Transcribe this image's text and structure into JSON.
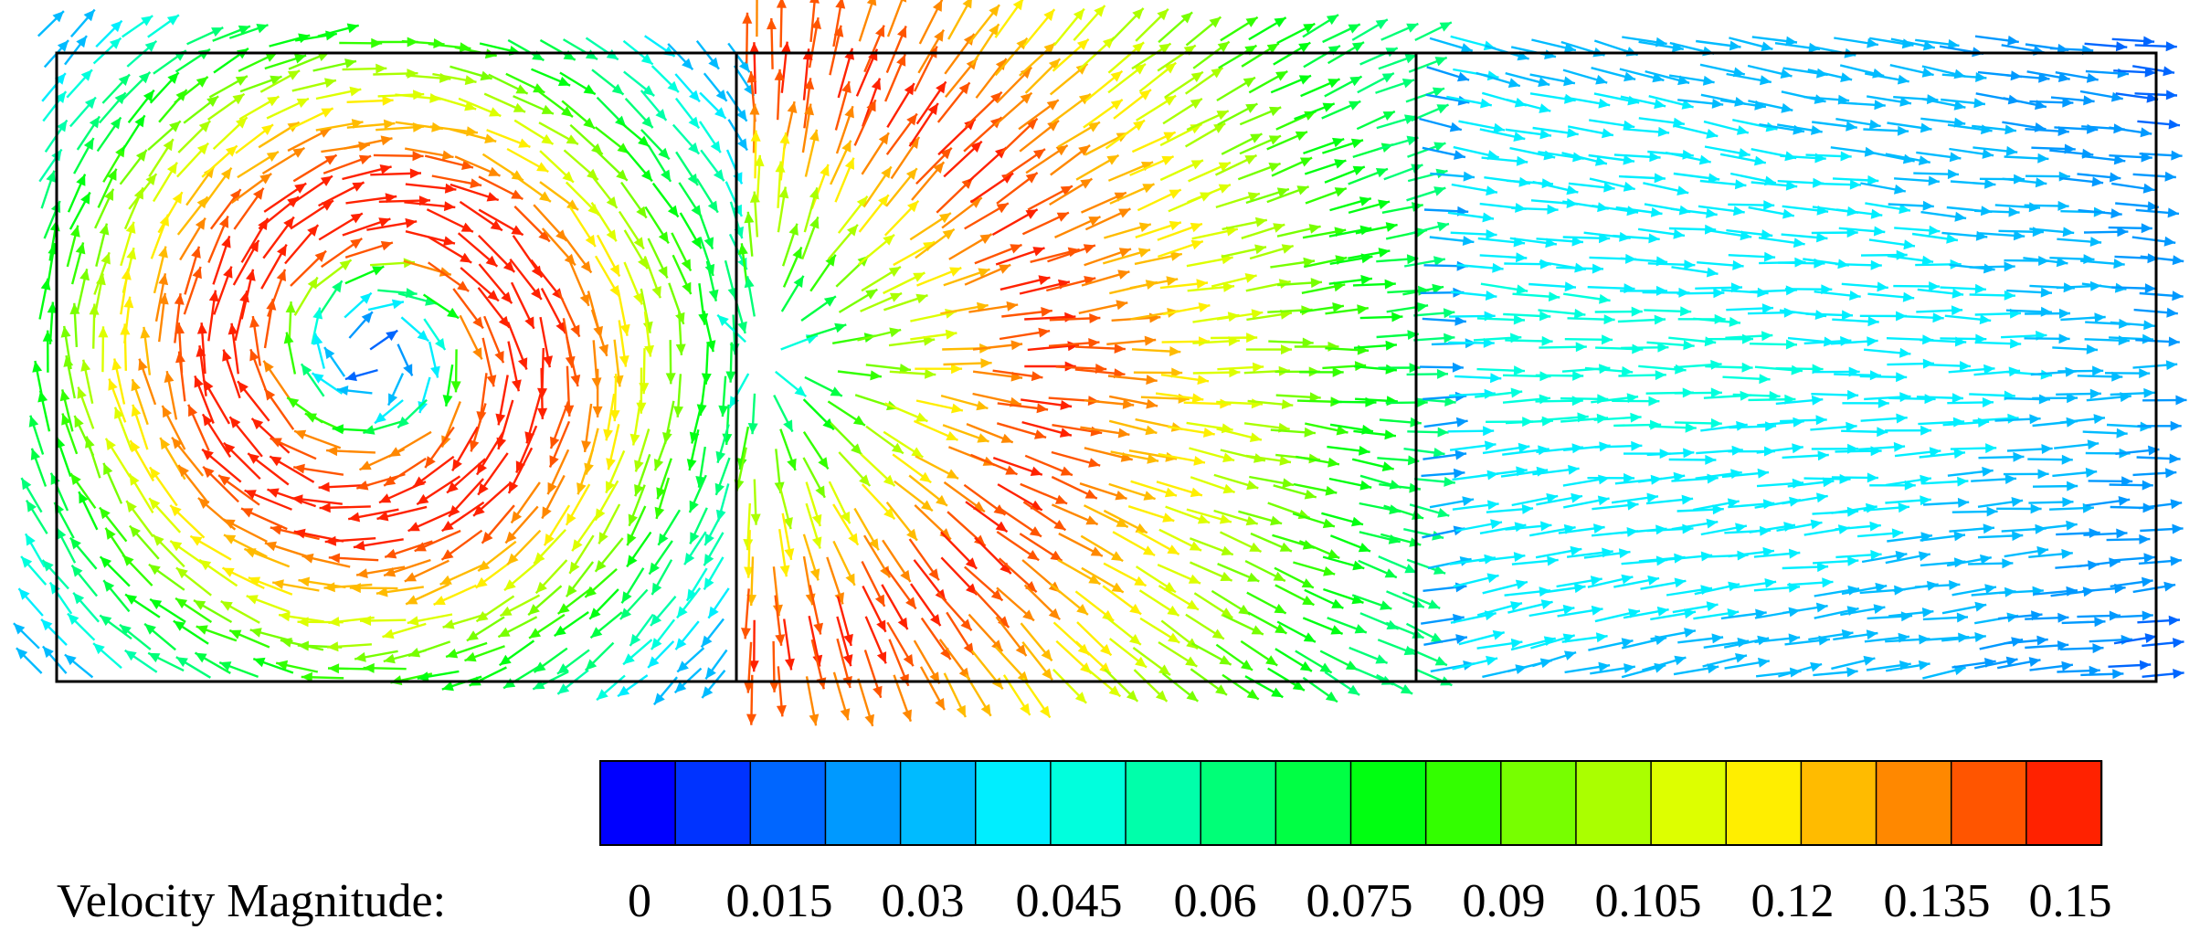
{
  "figure": {
    "legend": {
      "title": "Velocity Magnitude:",
      "tick_labels": [
        "0",
        "0.015",
        "0.03",
        "0.045",
        "0.06",
        "0.075",
        "0.09",
        "0.105",
        "0.12",
        "0.135",
        "0.15"
      ],
      "min": 0,
      "max": 0.15,
      "bins": [
        {
          "from": 0.0,
          "to": 0.0075,
          "color": "#0000ff"
        },
        {
          "from": 0.0075,
          "to": 0.015,
          "color": "#0033ff"
        },
        {
          "from": 0.015,
          "to": 0.0225,
          "color": "#0066ff"
        },
        {
          "from": 0.0225,
          "to": 0.03,
          "color": "#0099ff"
        },
        {
          "from": 0.03,
          "to": 0.0375,
          "color": "#00bbff"
        },
        {
          "from": 0.0375,
          "to": 0.045,
          "color": "#00eeff"
        },
        {
          "from": 0.045,
          "to": 0.0525,
          "color": "#00ffdd"
        },
        {
          "from": 0.0525,
          "to": 0.06,
          "color": "#00ffaa"
        },
        {
          "from": 0.06,
          "to": 0.0675,
          "color": "#00ff77"
        },
        {
          "from": 0.0675,
          "to": 0.075,
          "color": "#00ff44"
        },
        {
          "from": 0.075,
          "to": 0.0825,
          "color": "#00ff11"
        },
        {
          "from": 0.0825,
          "to": 0.09,
          "color": "#33ff00"
        },
        {
          "from": 0.09,
          "to": 0.0975,
          "color": "#77ff00"
        },
        {
          "from": 0.0975,
          "to": 0.105,
          "color": "#aaff00"
        },
        {
          "from": 0.105,
          "to": 0.1125,
          "color": "#ddff00"
        },
        {
          "from": 0.1125,
          "to": 0.12,
          "color": "#ffee00"
        },
        {
          "from": 0.12,
          "to": 0.1275,
          "color": "#ffbb00"
        },
        {
          "from": 0.1275,
          "to": 0.135,
          "color": "#ff8800"
        },
        {
          "from": 0.135,
          "to": 0.1425,
          "color": "#ff5500"
        },
        {
          "from": 0.1425,
          "to": 0.15,
          "color": "#ff2200"
        }
      ]
    },
    "cavities": [
      {
        "name": "left-cavity",
        "pattern": "vortex"
      },
      {
        "name": "middle-cavity",
        "pattern": "source-fan"
      },
      {
        "name": "right-cavity",
        "pattern": "uniform-drift"
      }
    ]
  }
}
